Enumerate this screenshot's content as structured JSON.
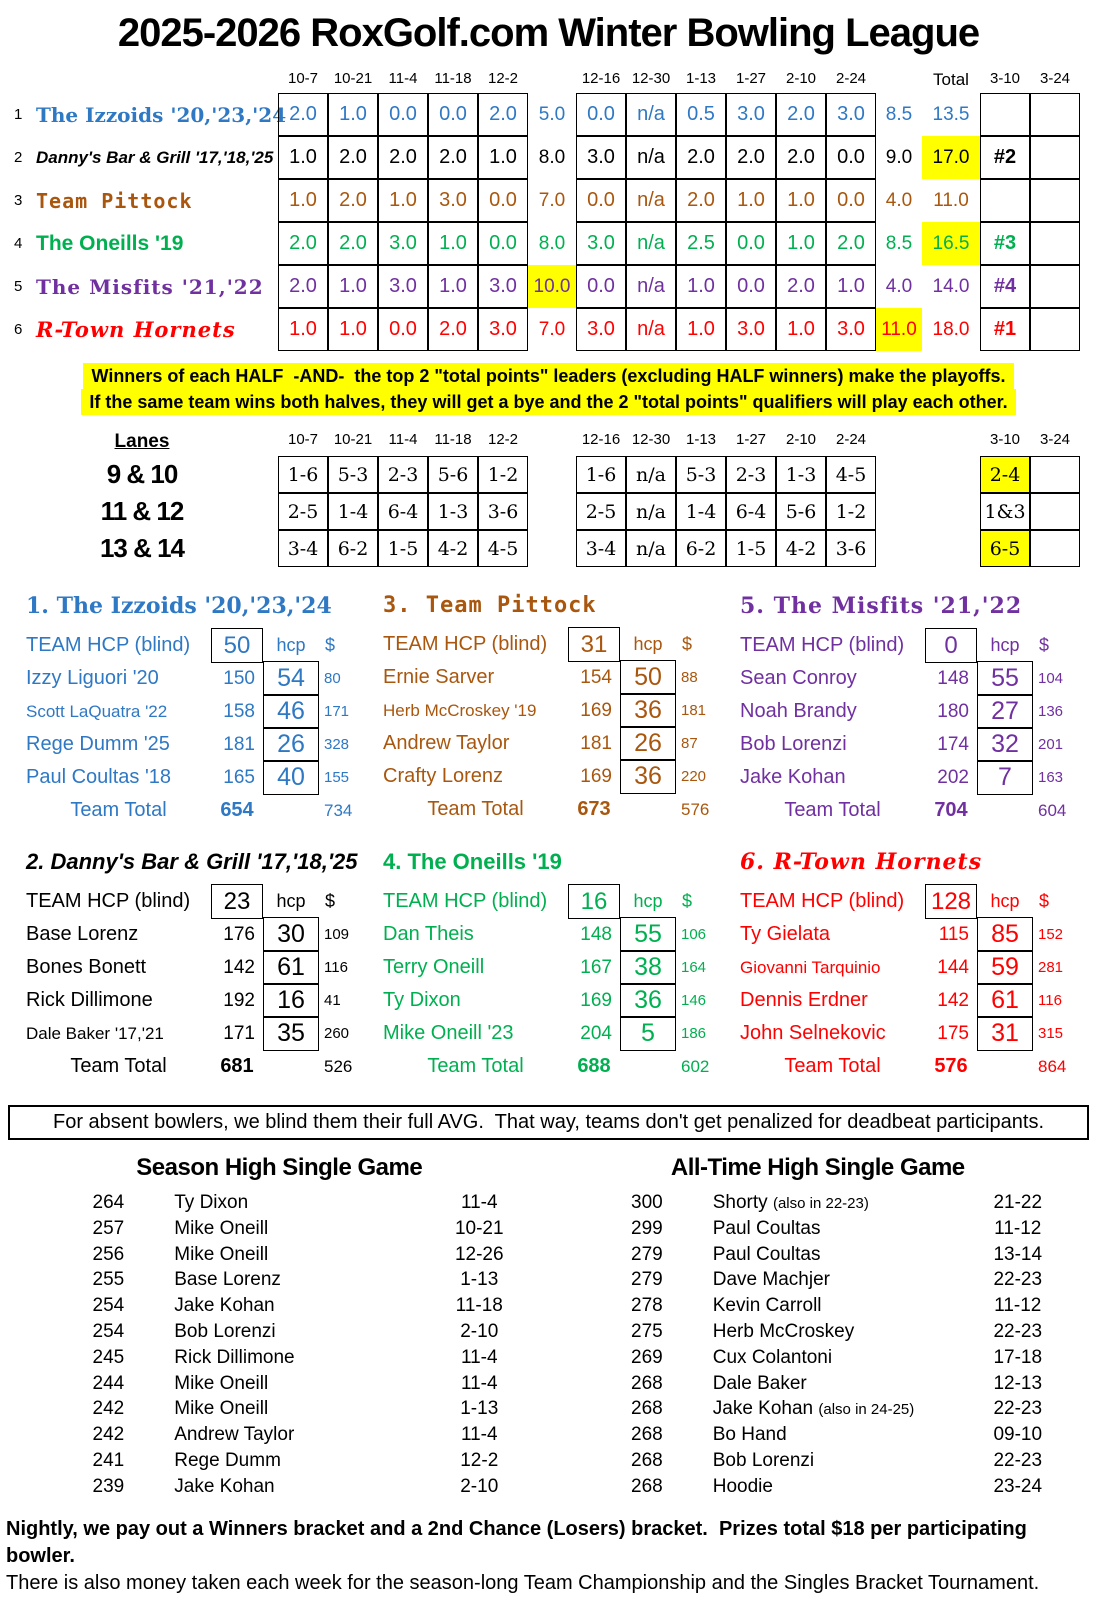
{
  "title": "2025-2026 RoxGolf.com Winter Bowling League",
  "colors": {
    "highlight": "#FFFF00",
    "teams": [
      "#2E78C4",
      "#000000",
      "#A9570E",
      "#00B050",
      "#7030A0",
      "#FF0000"
    ]
  },
  "standings": {
    "dates_first_half": [
      "10-7",
      "10-21",
      "11-4",
      "11-18",
      "12-2"
    ],
    "dates_second_half": [
      "12-16",
      "12-30",
      "1-13",
      "1-27",
      "2-10",
      "2-24"
    ],
    "total_label": "Total",
    "playoff_dates": [
      "3-10",
      "3-24"
    ],
    "teams": [
      {
        "rank": "1",
        "name": "The Izzoids '20,'23,'24",
        "first_half": [
          "2.0",
          "1.0",
          "0.0",
          "0.0",
          "2.0"
        ],
        "half1_total": "5.0",
        "second_half": [
          "0.0",
          "n/a",
          "0.5",
          "3.0",
          "2.0",
          "3.0"
        ],
        "half2_total": "8.5",
        "total": "13.5",
        "seed": "",
        "hl": ""
      },
      {
        "rank": "2",
        "name": "Danny's Bar & Grill '17,'18,'25",
        "first_half": [
          "1.0",
          "2.0",
          "2.0",
          "2.0",
          "1.0"
        ],
        "half1_total": "8.0",
        "second_half": [
          "3.0",
          "n/a",
          "2.0",
          "2.0",
          "2.0",
          "0.0"
        ],
        "half2_total": "9.0",
        "total": "17.0",
        "seed": "#2",
        "hl": "total"
      },
      {
        "rank": "3",
        "name": "Team Pittock",
        "first_half": [
          "1.0",
          "2.0",
          "1.0",
          "3.0",
          "0.0"
        ],
        "half1_total": "7.0",
        "second_half": [
          "0.0",
          "n/a",
          "2.0",
          "1.0",
          "1.0",
          "0.0"
        ],
        "half2_total": "4.0",
        "total": "11.0",
        "seed": "",
        "hl": ""
      },
      {
        "rank": "4",
        "name": "The Oneills '19",
        "first_half": [
          "2.0",
          "2.0",
          "3.0",
          "1.0",
          "0.0"
        ],
        "half1_total": "8.0",
        "second_half": [
          "3.0",
          "n/a",
          "2.5",
          "0.0",
          "1.0",
          "2.0"
        ],
        "half2_total": "8.5",
        "total": "16.5",
        "seed": "#3",
        "hl": "total"
      },
      {
        "rank": "5",
        "name": "The Misfits '21,'22",
        "first_half": [
          "2.0",
          "1.0",
          "3.0",
          "1.0",
          "3.0"
        ],
        "half1_total": "10.0",
        "second_half": [
          "0.0",
          "n/a",
          "1.0",
          "0.0",
          "2.0",
          "1.0"
        ],
        "half2_total": "4.0",
        "total": "14.0",
        "seed": "#4",
        "hl": "half1"
      },
      {
        "rank": "6",
        "name": "R-Town Hornets",
        "first_half": [
          "1.0",
          "1.0",
          "0.0",
          "2.0",
          "3.0"
        ],
        "half1_total": "7.0",
        "second_half": [
          "3.0",
          "n/a",
          "1.0",
          "3.0",
          "1.0",
          "3.0"
        ],
        "half2_total": "11.0",
        "total": "18.0",
        "seed": "#1",
        "hl": "half2"
      }
    ]
  },
  "playoff_note": {
    "line1": "Winners of each HALF  -AND-  the top 2 \"total points\" leaders (excluding HALF winners) make the playoffs.",
    "line2": "If the same team wins both halves, they will get a bye and the 2 \"total points\" qualifiers will play each other."
  },
  "lanes": {
    "label": "Lanes",
    "rows": [
      {
        "label": "9 & 10",
        "first": [
          "1-6",
          "5-3",
          "2-3",
          "5-6",
          "1-2"
        ],
        "second": [
          "1-6",
          "n/a",
          "5-3",
          "2-3",
          "1-3",
          "4-5"
        ],
        "playoff": [
          {
            "text": "2-4",
            "hl": true
          },
          {
            "text": "",
            "hl": false
          }
        ]
      },
      {
        "label": "11 & 12",
        "first": [
          "2-5",
          "1-4",
          "6-4",
          "1-3",
          "3-6"
        ],
        "second": [
          "2-5",
          "n/a",
          "1-4",
          "6-4",
          "5-6",
          "1-2"
        ],
        "playoff": [
          {
            "text": "1&3",
            "hl": false
          },
          {
            "text": "",
            "hl": false
          }
        ]
      },
      {
        "label": "13 & 14",
        "first": [
          "3-4",
          "6-2",
          "1-5",
          "4-2",
          "4-5"
        ],
        "second": [
          "3-4",
          "n/a",
          "6-2",
          "1-5",
          "4-2",
          "3-6"
        ],
        "playoff": [
          {
            "text": "6-5",
            "hl": true
          },
          {
            "text": "",
            "hl": false
          }
        ]
      }
    ]
  },
  "roster_labels": {
    "team_hcp": "TEAM HCP (blind)",
    "hcp": "hcp",
    "money": "$",
    "team_total": "Team Total"
  },
  "rosters": [
    {
      "title": "1. The Izzoids '20,'23,'24",
      "team_hcp": "50",
      "bowlers": [
        {
          "name": "Izzy Liguori '20",
          "avg": "150",
          "hcp": "54",
          "money": "80"
        },
        {
          "name": "Scott LaQuatra '22",
          "avg": "158",
          "hcp": "46",
          "money": "171"
        },
        {
          "name": "Rege Dumm '25",
          "avg": "181",
          "hcp": "26",
          "money": "328"
        },
        {
          "name": "Paul Coultas '18",
          "avg": "165",
          "hcp": "40",
          "money": "155"
        }
      ],
      "total": "654",
      "money_total": "734"
    },
    {
      "title": "2. Danny's Bar & Grill '17,'18,'25",
      "team_hcp": "23",
      "bowlers": [
        {
          "name": "Base Lorenz",
          "avg": "176",
          "hcp": "30",
          "money": "109"
        },
        {
          "name": "Bones Bonett",
          "avg": "142",
          "hcp": "61",
          "money": "116"
        },
        {
          "name": "Rick Dillimone",
          "avg": "192",
          "hcp": "16",
          "money": "41"
        },
        {
          "name": "Dale Baker '17,'21",
          "avg": "171",
          "hcp": "35",
          "money": "260"
        }
      ],
      "total": "681",
      "money_total": "526"
    },
    {
      "title": "3. Team Pittock",
      "team_hcp": "31",
      "bowlers": [
        {
          "name": "Ernie Sarver",
          "avg": "154",
          "hcp": "50",
          "money": "88"
        },
        {
          "name": "Herb McCroskey '19",
          "avg": "169",
          "hcp": "36",
          "money": "181"
        },
        {
          "name": "Andrew Taylor",
          "avg": "181",
          "hcp": "26",
          "money": "87"
        },
        {
          "name": "Crafty Lorenz",
          "avg": "169",
          "hcp": "36",
          "money": "220"
        }
      ],
      "total": "673",
      "money_total": "576"
    },
    {
      "title": "4. The Oneills '19",
      "team_hcp": "16",
      "bowlers": [
        {
          "name": "Dan Theis",
          "avg": "148",
          "hcp": "55",
          "money": "106"
        },
        {
          "name": "Terry Oneill",
          "avg": "167",
          "hcp": "38",
          "money": "164"
        },
        {
          "name": "Ty Dixon",
          "avg": "169",
          "hcp": "36",
          "money": "146"
        },
        {
          "name": "Mike Oneill '23",
          "avg": "204",
          "hcp": "5",
          "money": "186"
        }
      ],
      "total": "688",
      "money_total": "602"
    },
    {
      "title": "5. The Misfits '21,'22",
      "team_hcp": "0",
      "bowlers": [
        {
          "name": "Sean Conroy",
          "avg": "148",
          "hcp": "55",
          "money": "104"
        },
        {
          "name": "Noah Brandy",
          "avg": "180",
          "hcp": "27",
          "money": "136"
        },
        {
          "name": "Bob Lorenzi",
          "avg": "174",
          "hcp": "32",
          "money": "201"
        },
        {
          "name": "Jake Kohan",
          "avg": "202",
          "hcp": "7",
          "money": "163"
        }
      ],
      "total": "704",
      "money_total": "604"
    },
    {
      "title": "6. R-Town Hornets",
      "team_hcp": "128",
      "bowlers": [
        {
          "name": "Ty Gielata",
          "avg": "115",
          "hcp": "85",
          "money": "152"
        },
        {
          "name": "Giovanni Tarquinio",
          "avg": "144",
          "hcp": "59",
          "money": "281"
        },
        {
          "name": "Dennis Erdner",
          "avg": "142",
          "hcp": "61",
          "money": "116"
        },
        {
          "name": "John Selnekovic",
          "avg": "175",
          "hcp": "31",
          "money": "315"
        }
      ],
      "total": "576",
      "money_total": "864"
    }
  ],
  "absent_note": "For absent bowlers, we blind them their full AVG.  That way, teams don't get penalized for deadbeat participants.",
  "high_games": {
    "season": {
      "title": "Season High Single Game",
      "rows": [
        {
          "score": "264",
          "name": "Ty Dixon",
          "note": "",
          "date": "11-4"
        },
        {
          "score": "257",
          "name": "Mike Oneill",
          "note": "",
          "date": "10-21"
        },
        {
          "score": "256",
          "name": "Mike Oneill",
          "note": "",
          "date": "12-26"
        },
        {
          "score": "255",
          "name": "Base Lorenz",
          "note": "",
          "date": "1-13"
        },
        {
          "score": "254",
          "name": "Jake Kohan",
          "note": "",
          "date": "11-18"
        },
        {
          "score": "254",
          "name": "Bob Lorenzi",
          "note": "",
          "date": "2-10"
        },
        {
          "score": "245",
          "name": "Rick Dillimone",
          "note": "",
          "date": "11-4"
        },
        {
          "score": "244",
          "name": "Mike Oneill",
          "note": "",
          "date": "11-4"
        },
        {
          "score": "242",
          "name": "Mike Oneill",
          "note": "",
          "date": "1-13"
        },
        {
          "score": "242",
          "name": "Andrew Taylor",
          "note": "",
          "date": "11-4"
        },
        {
          "score": "241",
          "name": "Rege Dumm",
          "note": "",
          "date": "12-2"
        },
        {
          "score": "239",
          "name": "Jake Kohan",
          "note": "",
          "date": "2-10"
        }
      ]
    },
    "all_time": {
      "title": "All-Time High Single Game",
      "rows": [
        {
          "score": "300",
          "name": "Shorty",
          "note": "(also in 22-23)",
          "date": "21-22"
        },
        {
          "score": "299",
          "name": "Paul Coultas",
          "note": "",
          "date": "11-12"
        },
        {
          "score": "279",
          "name": "Paul Coultas",
          "note": "",
          "date": "13-14"
        },
        {
          "score": "279",
          "name": "Dave Machjer",
          "note": "",
          "date": "22-23"
        },
        {
          "score": "278",
          "name": "Kevin Carroll",
          "note": "",
          "date": "11-12"
        },
        {
          "score": "275",
          "name": "Herb McCroskey",
          "note": "",
          "date": "22-23"
        },
        {
          "score": "269",
          "name": "Cux Colantoni",
          "note": "",
          "date": "17-18"
        },
        {
          "score": "268",
          "name": "Dale Baker",
          "note": "",
          "date": "12-13"
        },
        {
          "score": "268",
          "name": "Jake Kohan",
          "note": "(also in 24-25)",
          "date": "22-23"
        },
        {
          "score": "268",
          "name": "Bo Hand",
          "note": "",
          "date": "09-10"
        },
        {
          "score": "268",
          "name": "Bob Lorenzi",
          "note": "",
          "date": "22-23"
        },
        {
          "score": "268",
          "name": "Hoodie",
          "note": "",
          "date": "23-24"
        }
      ]
    }
  },
  "bottom_notes": {
    "line1": "Nightly, we pay out a Winners bracket and a 2nd Chance (Losers) bracket.  Prizes total $18 per participating bowler.",
    "line2": "There is also money taken each week for the season-long Team Championship and the Singles Bracket Tournament."
  }
}
